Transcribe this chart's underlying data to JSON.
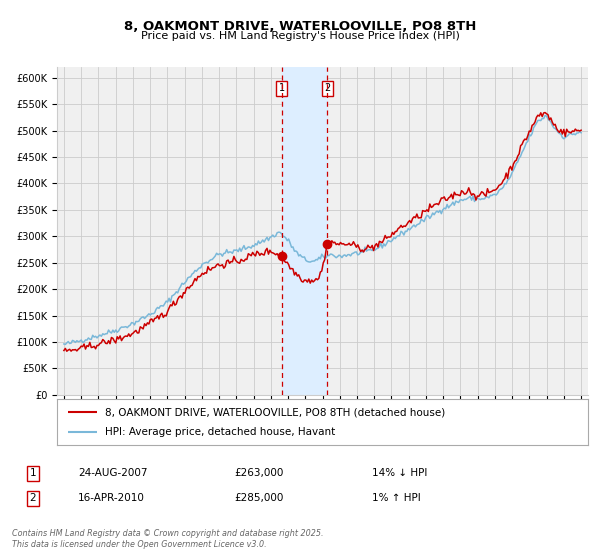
{
  "title": "8, OAKMONT DRIVE, WATERLOOVILLE, PO8 8TH",
  "subtitle": "Price paid vs. HM Land Registry's House Price Index (HPI)",
  "legend_line1": "8, OAKMONT DRIVE, WATERLOOVILLE, PO8 8TH (detached house)",
  "legend_line2": "HPI: Average price, detached house, Havant",
  "footer": "Contains HM Land Registry data © Crown copyright and database right 2025.\nThis data is licensed under the Open Government Licence v3.0.",
  "transaction1_date": "24-AUG-2007",
  "transaction1_price": "£263,000",
  "transaction1_hpi": "14% ↓ HPI",
  "transaction2_date": "16-APR-2010",
  "transaction2_price": "£285,000",
  "transaction2_hpi": "1% ↑ HPI",
  "hpi_color": "#7ab8d9",
  "price_color": "#cc0000",
  "marker_color": "#cc0000",
  "shade_color": "#ddeeff",
  "vline_color": "#cc0000",
  "grid_color": "#cccccc",
  "bg_color": "#ffffff",
  "plot_bg_color": "#f0f0f0",
  "ylim": [
    0,
    620000
  ],
  "yticks": [
    0,
    50000,
    100000,
    150000,
    200000,
    250000,
    300000,
    350000,
    400000,
    450000,
    500000,
    550000,
    600000
  ],
  "year_start": 1995,
  "year_end": 2025,
  "transaction1_year": 2007.65,
  "transaction2_year": 2010.29,
  "transaction1_value": 263000,
  "transaction2_value": 285000
}
